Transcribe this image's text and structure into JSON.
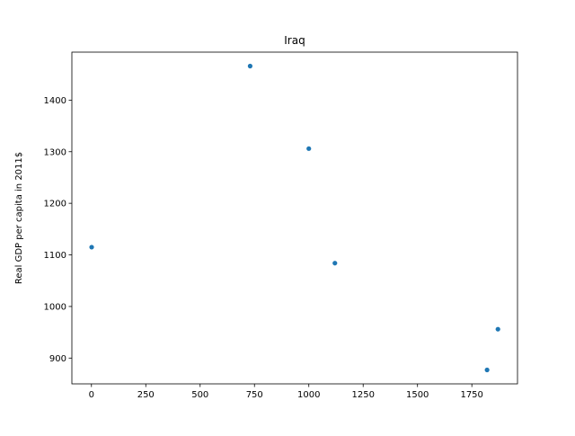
{
  "chart_data": {
    "type": "scatter",
    "title": "Iraq",
    "xlabel": "",
    "ylabel": "Real GDP per capita in 2011$",
    "xlim": [
      -90,
      1960
    ],
    "ylim": [
      850,
      1493
    ],
    "x_ticks": [
      0,
      250,
      500,
      750,
      1000,
      1250,
      1500,
      1750
    ],
    "y_ticks": [
      900,
      1000,
      1100,
      1200,
      1300,
      1400
    ],
    "grid": false,
    "marker_color": "#1f77b4",
    "points": [
      {
        "x": 1,
        "y": 1115
      },
      {
        "x": 730,
        "y": 1466
      },
      {
        "x": 1000,
        "y": 1306
      },
      {
        "x": 1120,
        "y": 1084
      },
      {
        "x": 1820,
        "y": 877
      },
      {
        "x": 1870,
        "y": 956
      }
    ]
  }
}
